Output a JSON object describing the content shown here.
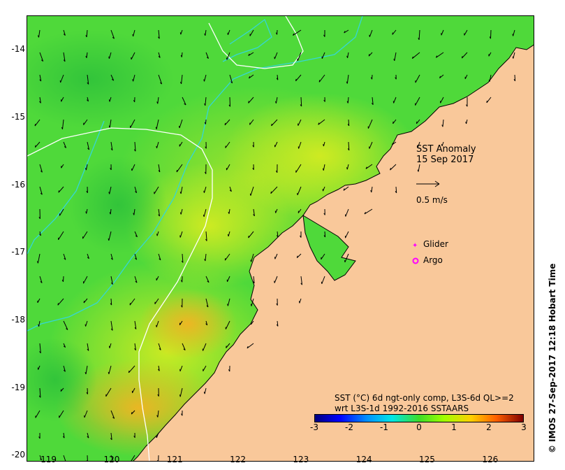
{
  "title": "SST Anomaly",
  "date": "15 Sep 2017",
  "scale_label": "0.5 m/s",
  "legend": {
    "glider": "Glider",
    "argo": "Argo"
  },
  "colorbar_title_line1": "SST (°C) 6d ngt-only comp, L3S-6d QL>=2",
  "colorbar_title_line2": "wrt L3S-1d 1992-2016 SSTAARS",
  "colorbar_ticks": [
    "-3",
    "-2",
    "-1",
    "0",
    "1",
    "2",
    "3"
  ],
  "credit": "© IMOS 27-Sep-2017 12:18 Hobart Time",
  "y_ticks": [
    "-14",
    "-15",
    "-16",
    "-17",
    "-18",
    "-19",
    "-20"
  ],
  "x_ticks": [
    "119",
    "120",
    "121",
    "122",
    "123",
    "124",
    "125",
    "126"
  ],
  "colors": {
    "land": "#f9c89a",
    "ocean_base": "#44d437",
    "anomaly_warm": "#d8e820",
    "hot_spot": "#f0b020",
    "contour_white": "#ffffff",
    "contour_cyan": "#35d6d6",
    "glider": "#ff00ff",
    "argo": "#ff00ff"
  },
  "chart_data": {
    "type": "heatmap",
    "title": "SST Anomaly",
    "subtitle": "15 Sep 2017",
    "xlabel": "",
    "ylabel": "",
    "xlim": [
      118.65,
      126.7
    ],
    "ylim": [
      -20.1,
      -13.5
    ],
    "x_ticks": [
      119,
      120,
      121,
      122,
      123,
      124,
      125,
      126
    ],
    "y_ticks": [
      -14,
      -15,
      -16,
      -17,
      -18,
      -19,
      -20
    ],
    "colorbar": {
      "min": -3,
      "max": 3,
      "ticks": [
        -3,
        -2,
        -1,
        0,
        1,
        2,
        3
      ]
    },
    "legend": [
      "Glider",
      "Argo"
    ],
    "grid": false
  }
}
